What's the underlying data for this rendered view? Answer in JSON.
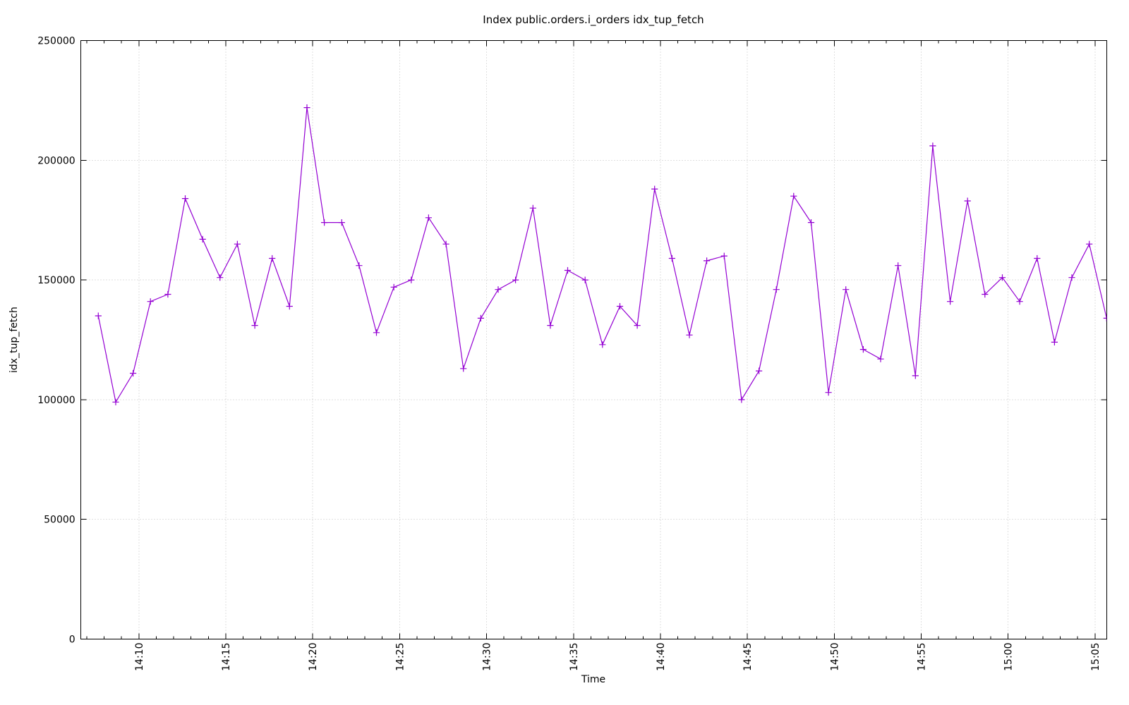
{
  "chart_data": {
    "type": "line",
    "title": "Index public.orders.i_orders idx_tup_fetch",
    "xlabel": "Time",
    "ylabel": "idx_tup_fetch",
    "grid": true,
    "legend": false,
    "colors": {
      "line": "#9400d3",
      "grid": "#c0c0c0",
      "border": "#000000",
      "text": "#000000",
      "background": "#ffffff"
    },
    "x_axis": {
      "start": "14:06:40",
      "end": "15:05:40",
      "major_tick_minutes": 5,
      "minor_tick_minutes": 1,
      "tick_labels": [
        "14:10",
        "14:15",
        "14:20",
        "14:25",
        "14:30",
        "14:35",
        "14:40",
        "14:45",
        "14:50",
        "14:55",
        "15:00",
        "15:05"
      ]
    },
    "y_axis": {
      "min": 0,
      "max": 250000,
      "tick_step": 50000,
      "tick_labels": [
        "0",
        "50000",
        "100000",
        "150000",
        "200000",
        "250000"
      ]
    },
    "series": [
      {
        "name": "idx_tup_fetch",
        "color": "#9400d3",
        "marker": "plus",
        "points": [
          [
            "14:07:40",
            135000
          ],
          [
            "14:08:40",
            99000
          ],
          [
            "14:09:40",
            111000
          ],
          [
            "14:10:40",
            141000
          ],
          [
            "14:11:40",
            144000
          ],
          [
            "14:12:40",
            184000
          ],
          [
            "14:13:40",
            167000
          ],
          [
            "14:14:40",
            151000
          ],
          [
            "14:15:40",
            165000
          ],
          [
            "14:16:40",
            131000
          ],
          [
            "14:17:40",
            159000
          ],
          [
            "14:18:40",
            139000
          ],
          [
            "14:19:40",
            222000
          ],
          [
            "14:20:40",
            174000
          ],
          [
            "14:21:40",
            174000
          ],
          [
            "14:22:40",
            156000
          ],
          [
            "14:23:40",
            128000
          ],
          [
            "14:24:40",
            147000
          ],
          [
            "14:25:40",
            150000
          ],
          [
            "14:26:40",
            176000
          ],
          [
            "14:27:40",
            165000
          ],
          [
            "14:28:40",
            113000
          ],
          [
            "14:29:40",
            134000
          ],
          [
            "14:30:40",
            146000
          ],
          [
            "14:31:40",
            150000
          ],
          [
            "14:32:40",
            180000
          ],
          [
            "14:33:40",
            131000
          ],
          [
            "14:34:40",
            154000
          ],
          [
            "14:35:40",
            150000
          ],
          [
            "14:36:40",
            123000
          ],
          [
            "14:37:40",
            139000
          ],
          [
            "14:38:40",
            131000
          ],
          [
            "14:39:40",
            188000
          ],
          [
            "14:40:40",
            159000
          ],
          [
            "14:41:40",
            127000
          ],
          [
            "14:42:40",
            158000
          ],
          [
            "14:43:40",
            160000
          ],
          [
            "14:44:40",
            100000
          ],
          [
            "14:45:40",
            112000
          ],
          [
            "14:46:40",
            146000
          ],
          [
            "14:47:40",
            185000
          ],
          [
            "14:48:40",
            174000
          ],
          [
            "14:49:40",
            103000
          ],
          [
            "14:50:40",
            146000
          ],
          [
            "14:51:40",
            121000
          ],
          [
            "14:52:40",
            117000
          ],
          [
            "14:53:40",
            156000
          ],
          [
            "14:54:40",
            110000
          ],
          [
            "14:55:40",
            206000
          ],
          [
            "14:56:40",
            141000
          ],
          [
            "14:57:40",
            183000
          ],
          [
            "14:58:40",
            144000
          ],
          [
            "14:59:40",
            151000
          ],
          [
            "15:00:40",
            141000
          ],
          [
            "15:01:40",
            159000
          ],
          [
            "15:02:40",
            124000
          ],
          [
            "15:03:40",
            151000
          ],
          [
            "15:04:40",
            165000
          ],
          [
            "15:05:40",
            134000
          ]
        ]
      }
    ]
  }
}
